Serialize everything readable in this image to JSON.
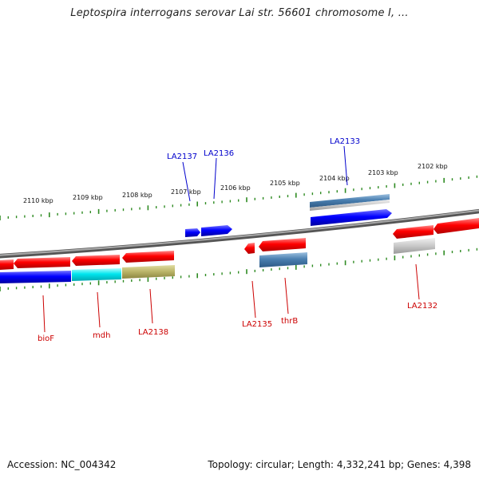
{
  "title": "Leptospira interrogans serovar Lai str. 56601 chromosome I, ...",
  "footer": {
    "accession": "Accession: NC_004342",
    "topology": "Topology: circular; Length: 4,332,241 bp; Genes: 4,398"
  },
  "scale_labels": [
    "2110 kbp",
    "2109 kbp",
    "2108 kbp",
    "2107 kbp",
    "2106 kbp",
    "2105 kbp",
    "2104 kbp",
    "2103 kbp",
    "2102 kbp"
  ],
  "genes": [
    {
      "name": "LA2137",
      "color": "#0000cc"
    },
    {
      "name": "LA2136",
      "color": "#0000cc"
    },
    {
      "name": "LA2133",
      "color": "#0000cc"
    },
    {
      "name": "bioF",
      "color": "#cc0000"
    },
    {
      "name": "mdh",
      "color": "#cc0000"
    },
    {
      "name": "LA2138",
      "color": "#cc0000"
    },
    {
      "name": "LA2135",
      "color": "#cc0000"
    },
    {
      "name": "thrB",
      "color": "#cc0000"
    },
    {
      "name": "LA2132",
      "color": "#cc0000"
    }
  ],
  "colors": {
    "forward": "#0000ff",
    "reverse": "#ff0000",
    "backbone": "#888888",
    "tick": "#2e8b22"
  }
}
